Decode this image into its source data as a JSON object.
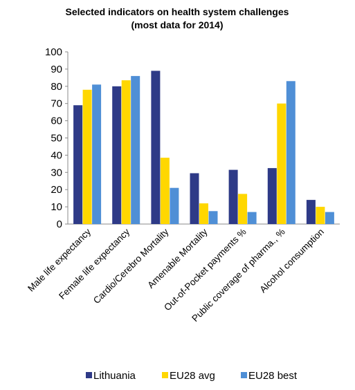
{
  "chart_data": {
    "type": "bar",
    "title": "Selected indicators on health system challenges",
    "subtitle": "(most data for 2014)",
    "categories": [
      "Male life expectancy",
      "Female life expectancy",
      "Cardio/Cerebro Mortality",
      "Amenable Mortality",
      "Out-of-Pocket payments %",
      "Public coverage of pharma., %",
      "Alcohol consumption"
    ],
    "series": [
      {
        "name": "Lithuania",
        "color": "#2E3A87",
        "values": [
          69,
          80,
          89,
          29.5,
          31.5,
          32.5,
          14
        ]
      },
      {
        "name": "EU28 avg",
        "color": "#FFD700",
        "values": [
          78,
          83.5,
          38.5,
          12,
          17.5,
          70,
          10
        ]
      },
      {
        "name": "EU28 best",
        "color": "#4F8FD6",
        "values": [
          81,
          86,
          21,
          7.5,
          7,
          83,
          7
        ]
      }
    ],
    "ylim": [
      0,
      100
    ],
    "yticks": [
      "0",
      "10",
      "20",
      "30",
      "40",
      "50",
      "60",
      "70",
      "80",
      "90",
      "100"
    ],
    "grid": false,
    "legend_position": "bottom"
  }
}
